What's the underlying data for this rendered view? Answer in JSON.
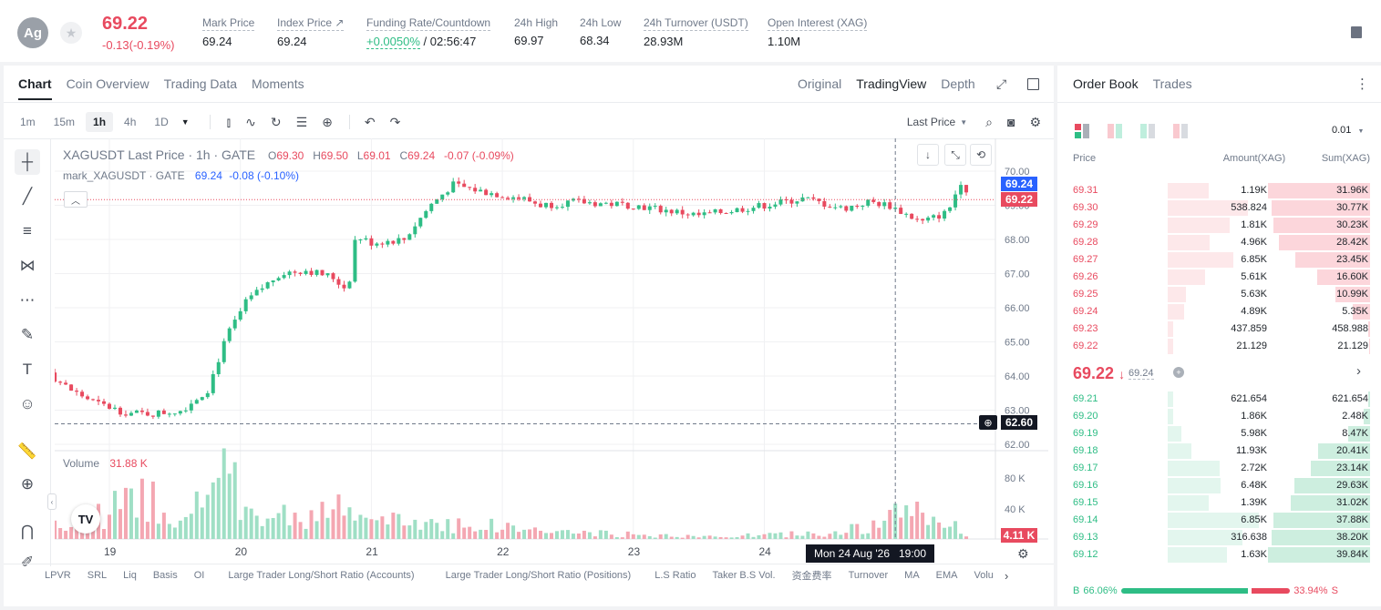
{
  "header": {
    "avatar": "Ag",
    "last_price": "69.22",
    "change": "-0.13(-0.19%)",
    "stats": [
      {
        "label": "Mark Price",
        "value": "69.24"
      },
      {
        "label": "Index Price ↗",
        "value": "69.24"
      },
      {
        "label": "Funding Rate/Countdown",
        "value_green": "+0.0050%",
        "value": "/ 02:56:47"
      },
      {
        "label": "24h High",
        "value": "69.97"
      },
      {
        "label": "24h Low",
        "value": "68.34"
      },
      {
        "label": "24h Turnover (USDT)",
        "value": "28.93M"
      },
      {
        "label": "Open Interest (XAG)",
        "value": "1.10M"
      }
    ]
  },
  "chart_tabs": [
    "Chart",
    "Coin Overview",
    "Trading Data",
    "Moments"
  ],
  "view_tabs": [
    "Original",
    "TradingView",
    "Depth"
  ],
  "timeframes": [
    "1m",
    "15m",
    "1h",
    "4h",
    "1D"
  ],
  "price_type": "Last Price",
  "legend": {
    "symbol": "XAGUSDT Last Price · 1h · GATE",
    "o_label": "O",
    "o": "69.30",
    "h_label": "H",
    "h": "69.50",
    "l_label": "L",
    "l": "69.01",
    "c_label": "C",
    "c": "69.24",
    "chg": "-0.07 (-0.09%)",
    "mark_symbol": "mark_XAGUSDT · GATE",
    "mark_val": "69.24",
    "mark_chg": "-0.08 (-0.10%)"
  },
  "volume_label": "Volume",
  "volume_value": "31.88 K",
  "tags": {
    "mark": "69.24",
    "last": "69.22",
    "cross": "62.60",
    "vol": "4.11 K"
  },
  "time_tooltip": {
    "date": "Mon 24 Aug '26",
    "time": "19:00"
  },
  "indicators": [
    "LPVR",
    "SRL",
    "Liq",
    "Basis",
    "OI",
    "Large Trader Long/Short Ratio (Accounts)",
    "Large Trader Long/Short Ratio (Positions)",
    "L.S Ratio",
    "Taker B.S Vol.",
    "资金费率",
    "Turnover",
    "MA",
    "EMA",
    "Volu"
  ],
  "chart_data": {
    "type": "candlestick",
    "price_axis": {
      "min": 62.0,
      "max": 70.0,
      "ticks": [
        "70.00",
        "69.00",
        "68.00",
        "67.00",
        "66.00",
        "65.00",
        "64.00",
        "63.00",
        "62.00"
      ]
    },
    "volume_axis": {
      "ticks": [
        "80 K",
        "40 K"
      ]
    },
    "x_ticks": [
      "19",
      "20",
      "21",
      "22",
      "23",
      "24"
    ],
    "anchors": [
      {
        "day": 18.0,
        "close": 65.1
      },
      {
        "day": 18.25,
        "close": 65.2
      },
      {
        "day": 18.45,
        "close": 64.3
      },
      {
        "day": 18.7,
        "close": 63.6
      },
      {
        "day": 18.9,
        "close": 63.2
      },
      {
        "day": 19.15,
        "close": 62.9
      },
      {
        "day": 19.35,
        "close": 62.9
      },
      {
        "day": 19.55,
        "close": 63.0
      },
      {
        "day": 19.75,
        "close": 63.6
      },
      {
        "day": 19.9,
        "close": 65.2
      },
      {
        "day": 20.05,
        "close": 66.2
      },
      {
        "day": 20.3,
        "close": 67.0
      },
      {
        "day": 20.5,
        "close": 67.1
      },
      {
        "day": 20.7,
        "close": 66.9
      },
      {
        "day": 20.82,
        "close": 66.5
      },
      {
        "day": 20.88,
        "close": 68.1
      },
      {
        "day": 21.0,
        "close": 67.9
      },
      {
        "day": 21.25,
        "close": 68.0
      },
      {
        "day": 21.45,
        "close": 69.0
      },
      {
        "day": 21.62,
        "close": 69.6
      },
      {
        "day": 21.85,
        "close": 69.4
      },
      {
        "day": 22.15,
        "close": 69.2
      },
      {
        "day": 22.3,
        "close": 69.0
      },
      {
        "day": 22.55,
        "close": 69.1
      },
      {
        "day": 23.0,
        "close": 69.0
      },
      {
        "day": 23.5,
        "close": 68.7
      },
      {
        "day": 24.0,
        "close": 69.0
      },
      {
        "day": 24.3,
        "close": 69.2
      },
      {
        "day": 24.6,
        "close": 68.9
      },
      {
        "day": 24.8,
        "close": 69.1
      },
      {
        "day": 24.95,
        "close": 69.0
      },
      {
        "day": 25.2,
        "close": 68.5
      },
      {
        "day": 25.4,
        "close": 68.8
      },
      {
        "day": 25.5,
        "close": 69.7
      },
      {
        "day": 25.58,
        "close": 69.24
      }
    ],
    "volume_anchors": [
      {
        "day": 18.0,
        "vol": 8
      },
      {
        "day": 18.7,
        "vol": 12
      },
      {
        "day": 19.3,
        "vol": 40
      },
      {
        "day": 19.6,
        "vol": 14
      },
      {
        "day": 19.8,
        "vol": 60
      },
      {
        "day": 20.2,
        "vol": 18
      },
      {
        "day": 20.7,
        "vol": 28
      },
      {
        "day": 21.0,
        "vol": 16
      },
      {
        "day": 21.6,
        "vol": 15
      },
      {
        "day": 22.5,
        "vol": 6
      },
      {
        "day": 23.5,
        "vol": 2
      },
      {
        "day": 24.4,
        "vol": 5
      },
      {
        "day": 24.9,
        "vol": 12
      },
      {
        "day": 25.1,
        "vol": 30
      },
      {
        "day": 25.58,
        "vol": 4
      }
    ],
    "last_price": 69.22,
    "mark_price": 69.24,
    "crosshair": {
      "price": 62.6,
      "day": 25.0
    }
  },
  "orderbook": {
    "tabs": [
      "Order Book",
      "Trades"
    ],
    "precision": "0.01",
    "headers": [
      "Price",
      "Amount(XAG)",
      "Sum(XAG)"
    ],
    "asks": [
      {
        "price": "69.31",
        "amount": "1.19K",
        "sum": "31.96K",
        "depth": 1.0
      },
      {
        "price": "69.30",
        "amount": "538.824",
        "sum": "30.77K",
        "depth": 0.96
      },
      {
        "price": "69.29",
        "amount": "1.81K",
        "sum": "30.23K",
        "depth": 0.95
      },
      {
        "price": "69.28",
        "amount": "4.96K",
        "sum": "28.42K",
        "depth": 0.89
      },
      {
        "price": "69.27",
        "amount": "6.85K",
        "sum": "23.45K",
        "depth": 0.73
      },
      {
        "price": "69.26",
        "amount": "5.61K",
        "sum": "16.60K",
        "depth": 0.52
      },
      {
        "price": "69.25",
        "amount": "5.63K",
        "sum": "10.99K",
        "depth": 0.34
      },
      {
        "price": "69.24",
        "amount": "4.89K",
        "sum": "5.35K",
        "depth": 0.17
      },
      {
        "price": "69.23",
        "amount": "437.859",
        "sum": "458.988",
        "depth": 0.02
      },
      {
        "price": "69.22",
        "amount": "21.129",
        "sum": "21.129",
        "depth": 0.01
      }
    ],
    "mid": {
      "price": "69.22",
      "arrow": "↓",
      "mark": "69.24"
    },
    "bids": [
      {
        "price": "69.21",
        "amount": "621.654",
        "sum": "621.654",
        "depth": 0.02
      },
      {
        "price": "69.20",
        "amount": "1.86K",
        "sum": "2.48K",
        "depth": 0.06
      },
      {
        "price": "69.19",
        "amount": "5.98K",
        "sum": "8.47K",
        "depth": 0.21
      },
      {
        "price": "69.18",
        "amount": "11.93K",
        "sum": "20.41K",
        "depth": 0.51
      },
      {
        "price": "69.17",
        "amount": "2.72K",
        "sum": "23.14K",
        "depth": 0.58
      },
      {
        "price": "69.16",
        "amount": "6.48K",
        "sum": "29.63K",
        "depth": 0.74
      },
      {
        "price": "69.15",
        "amount": "1.39K",
        "sum": "31.02K",
        "depth": 0.78
      },
      {
        "price": "69.14",
        "amount": "6.85K",
        "sum": "37.88K",
        "depth": 0.95
      },
      {
        "price": "69.13",
        "amount": "316.638",
        "sum": "38.20K",
        "depth": 0.96
      },
      {
        "price": "69.12",
        "amount": "1.63K",
        "sum": "39.84K",
        "depth": 1.0
      }
    ],
    "ratio": {
      "buy_label": "B",
      "buy": "66.06%",
      "sell": "33.94%",
      "sell_label": "S",
      "buy_frac": 0.6606
    }
  }
}
